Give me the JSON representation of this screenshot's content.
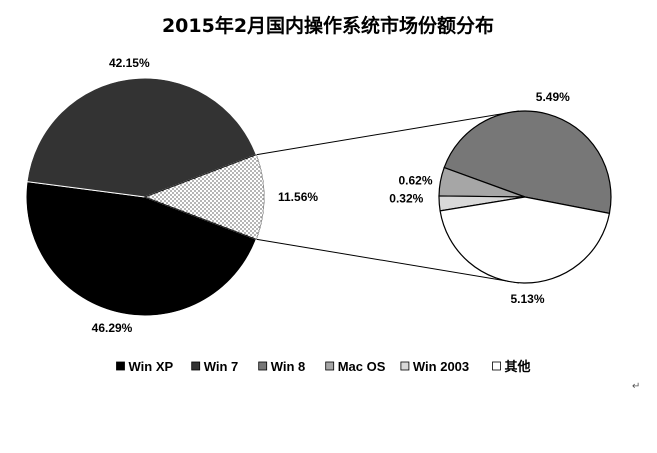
{
  "chart_data": {
    "type": "pie",
    "title": "2015年2月国内操作系统市场份额分布",
    "series": [
      {
        "values": [
          {
            "category": "Win XP",
            "value": 46.29,
            "label": "46.29%",
            "color": "#000000",
            "pattern": "solid"
          },
          {
            "category": "Win 7",
            "value": 42.15,
            "label": "42.15%",
            "color": "#333333",
            "pattern": "solid"
          },
          {
            "category": "Win 8",
            "value": 5.49,
            "label": "5.49%",
            "color": "#777777",
            "pattern": "solid"
          },
          {
            "category": "Mac OS",
            "value": 0.62,
            "label": "0.62%",
            "color": "#a6a6a6",
            "pattern": "solid"
          },
          {
            "category": "Win 2003",
            "value": 0.32,
            "label": "0.32%",
            "color": "#d9d9d9",
            "pattern": "solid"
          },
          {
            "category": "其他",
            "value": 5.13,
            "label": "5.13%",
            "color": "#ffffff",
            "pattern": "solid"
          }
        ]
      }
    ],
    "main_pie": {
      "slices": [
        "Win XP",
        "Win 7"
      ],
      "other_slice": {
        "label": "11.56%",
        "value": 11.56,
        "pattern": "dotted",
        "color": "#ffffff"
      }
    },
    "secondary_pie": {
      "slices": [
        "Win 8",
        "Mac OS",
        "Win 2003",
        "其他"
      ]
    },
    "legend": {
      "position": "bottom",
      "entries": [
        "Win XP",
        "Win 7",
        "Win 8",
        "Mac OS",
        "Win 2003",
        "其他"
      ]
    }
  },
  "paragraph_mark": "↵"
}
